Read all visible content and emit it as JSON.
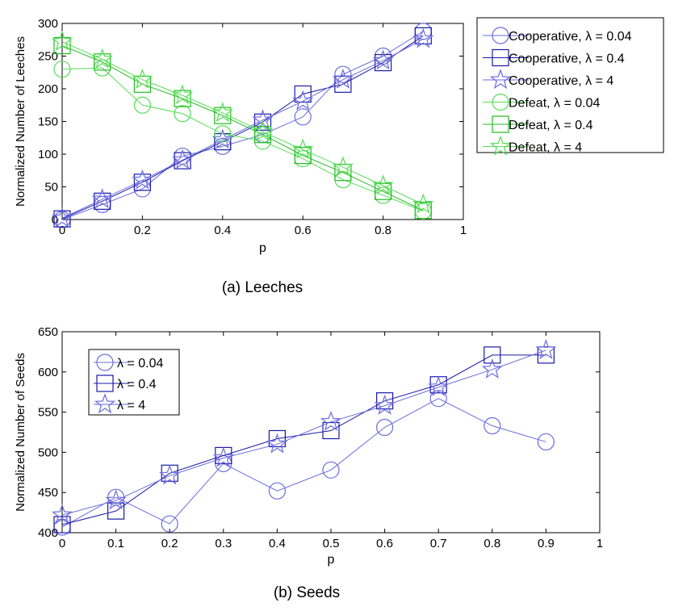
{
  "chart_data": [
    {
      "type": "line",
      "caption": "(a)  Leeches",
      "xlabel": "p",
      "ylabel": "Normalized Number of Leeches",
      "xlim": [
        0,
        1
      ],
      "ylim": [
        0,
        300
      ],
      "xticks": [
        0,
        0.2,
        0.4,
        0.6,
        0.8,
        1
      ],
      "xtick_labels": [
        "0",
        "0.2",
        "0.4",
        "0.6",
        "0.8",
        "1"
      ],
      "yticks": [
        0,
        50,
        100,
        150,
        200,
        250,
        300
      ],
      "ytick_labels": [
        "0",
        "50",
        "100",
        "150",
        "200",
        "250",
        "300"
      ],
      "legend_position": "outside-right",
      "x": [
        0,
        0.1,
        0.2,
        0.3,
        0.4,
        0.5,
        0.6,
        0.7,
        0.8,
        0.9
      ],
      "series": [
        {
          "name": "Cooperative, λ =  0.04",
          "marker": "circle",
          "color": "#6b6be0",
          "values": [
            0,
            23,
            47,
            97,
            112,
            130,
            157,
            222,
            250,
            288
          ]
        },
        {
          "name": "Cooperative, λ =  0.4",
          "marker": "square",
          "color": "#1a1aa8",
          "values": [
            1,
            28,
            57,
            90,
            119,
            149,
            192,
            207,
            240,
            281
          ]
        },
        {
          "name": "Cooperative, λ =  4",
          "marker": "star",
          "color": "#6b6be0",
          "values": [
            2,
            31,
            60,
            91,
            122,
            152,
            181,
            214,
            243,
            276
          ]
        },
        {
          "name": "Defeat, λ = 0.04",
          "marker": "circle",
          "color": "#55dd55",
          "values": [
            230,
            232,
            175,
            162,
            131,
            120,
            93,
            61,
            37,
            13
          ]
        },
        {
          "name": "Defeat, λ = 0.4",
          "marker": "square",
          "color": "#22bb22",
          "values": [
            266,
            241,
            207,
            185,
            159,
            130,
            98,
            72,
            43,
            14
          ]
        },
        {
          "name": "Defeat, λ = 4",
          "marker": "star",
          "color": "#55dd55",
          "values": [
            272,
            245,
            214,
            190,
            163,
            134,
            107,
            80,
            52,
            23
          ]
        }
      ]
    },
    {
      "type": "line",
      "caption": "(b)  Seeds",
      "xlabel": "p",
      "ylabel": "Normalized Number of Seeds",
      "xlim": [
        0,
        1
      ],
      "ylim": [
        400,
        650
      ],
      "xticks": [
        0,
        0.1,
        0.2,
        0.3,
        0.4,
        0.5,
        0.6,
        0.7,
        0.8,
        0.9,
        1
      ],
      "xtick_labels": [
        "0",
        "0.1",
        "0.2",
        "0.3",
        "0.4",
        "0.5",
        "0.6",
        "0.7",
        "0.8",
        "0.9",
        "1"
      ],
      "yticks": [
        400,
        450,
        500,
        550,
        600,
        650
      ],
      "ytick_labels": [
        "400",
        "450",
        "500",
        "550",
        "600",
        "650"
      ],
      "legend_position": "top-left",
      "x": [
        0,
        0.1,
        0.2,
        0.3,
        0.4,
        0.5,
        0.6,
        0.7,
        0.8,
        0.9
      ],
      "series": [
        {
          "name": "λ = 0.04",
          "marker": "circle",
          "color": "#6b6be0",
          "values": [
            407,
            444,
            411,
            486,
            452,
            478,
            531,
            567,
            533,
            513
          ]
        },
        {
          "name": "λ = 0.4",
          "marker": "square",
          "color": "#1a1aa8",
          "values": [
            410,
            427,
            474,
            496,
            517,
            527,
            564,
            584,
            621,
            621
          ]
        },
        {
          "name": "λ = 4",
          "marker": "star",
          "color": "#6b6be0",
          "values": [
            422,
            440,
            471,
            493,
            510,
            538,
            558,
            581,
            603,
            627
          ]
        }
      ]
    }
  ]
}
